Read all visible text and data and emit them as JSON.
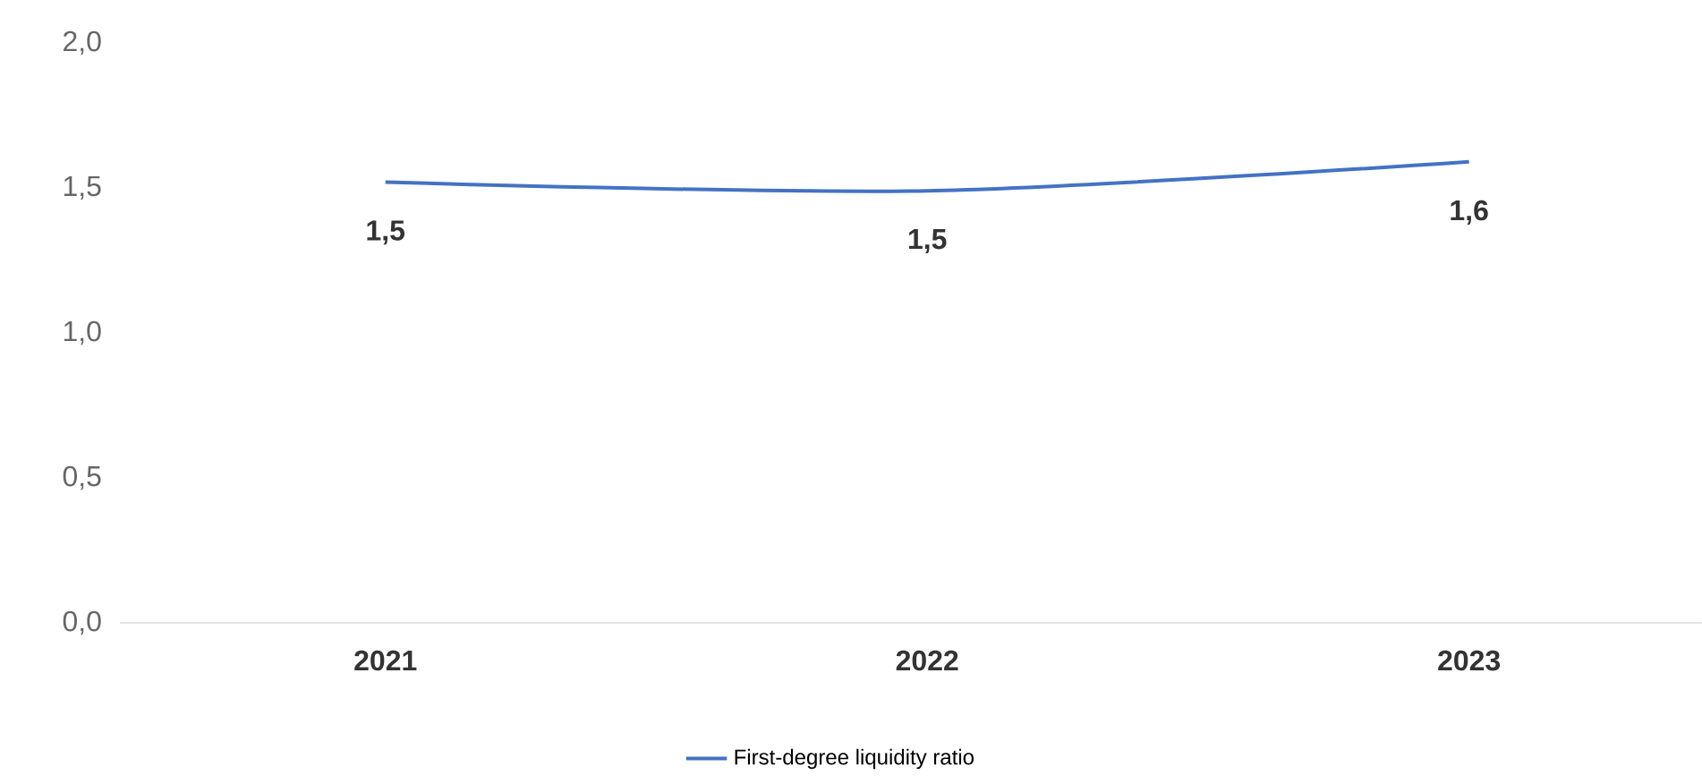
{
  "chart_data": {
    "type": "line",
    "categories": [
      "2021",
      "2022",
      "2023"
    ],
    "series": [
      {
        "name": "First-degree liquidity ratio",
        "color": "#4472c4",
        "values": [
          1.52,
          1.49,
          1.59
        ],
        "value_labels": [
          "1,5",
          "1,5",
          "1,6"
        ]
      }
    ],
    "ylim": [
      0,
      2
    ],
    "yticks": [
      {
        "value": 0,
        "label": "0,0"
      },
      {
        "value": 0.5,
        "label": "0,5"
      },
      {
        "value": 1,
        "label": "1,0"
      },
      {
        "value": 1.5,
        "label": "1,5"
      },
      {
        "value": 2,
        "label": "2,0"
      }
    ],
    "legend": "bottom",
    "line_style": "solid"
  }
}
